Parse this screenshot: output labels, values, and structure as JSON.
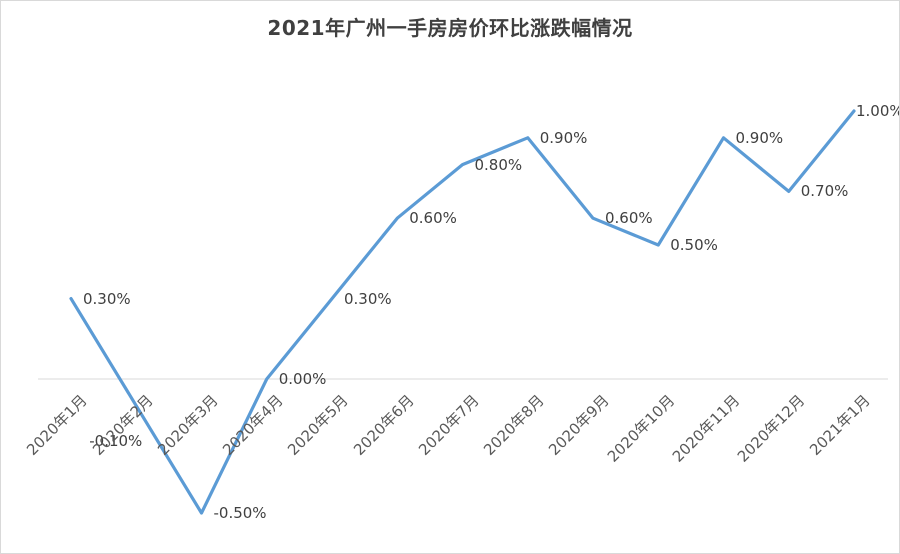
{
  "chart_data": {
    "type": "line",
    "title": "2021年广州一手房房价环比涨跌幅情况",
    "categories": [
      "2020年1月",
      "2020年2月",
      "2020年3月",
      "2020年4月",
      "2020年5月",
      "2020年6月",
      "2020年7月",
      "2020年8月",
      "2020年9月",
      "2020年10月",
      "2020年11月",
      "2020年12月",
      "2021年1月"
    ],
    "values": [
      0.3,
      -0.1,
      -0.5,
      0.0,
      0.3,
      0.6,
      0.8,
      0.9,
      0.6,
      0.5,
      0.9,
      0.7,
      1.0
    ],
    "point_labels": [
      "0.30%",
      "-0.10%",
      "-0.50%",
      "0.00%",
      "0.30%",
      "0.60%",
      "0.80%",
      "0.90%",
      "0.60%",
      "0.50%",
      "0.90%",
      "0.70%",
      "1.00%"
    ],
    "unit": "%",
    "xlabel": "",
    "ylabel": "",
    "ylim": [
      -0.6,
      1.1
    ],
    "grid": "zero-line-only",
    "legend_position": "none",
    "colors": {
      "line": "#5b9bd5",
      "data_label": "#404040",
      "axis_label": "#595959",
      "title": "#404040",
      "gridline": "#d9d9d9",
      "frame": "#d9d9d9",
      "background": "#ffffff"
    },
    "label_layout": {
      "default": "right",
      "exceptions": [
        {
          "index": 1,
          "placement": "below-left"
        },
        {
          "index": 12,
          "placement": "right-tight"
        }
      ]
    }
  }
}
